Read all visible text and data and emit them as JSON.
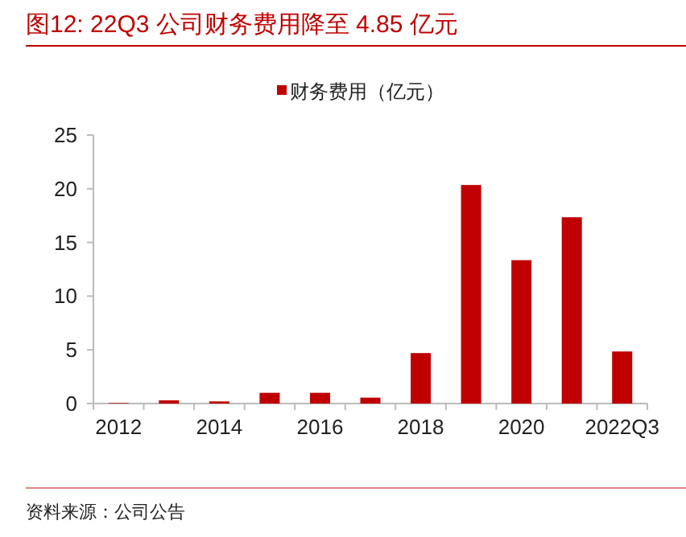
{
  "chart_data": {
    "type": "bar",
    "title": "图12:   22Q3 公司财务费用降至 4.85 亿元",
    "categories": [
      "2012",
      null,
      "2014",
      null,
      "2016",
      null,
      "2018",
      null,
      "2020",
      null,
      "2022Q3"
    ],
    "series": [
      {
        "name": "财务费用（亿元）",
        "color": "#c00000",
        "values": [
          0.05,
          0.3,
          0.2,
          1.0,
          1.0,
          0.55,
          4.7,
          20.35,
          13.35,
          17.35,
          4.85
        ]
      }
    ],
    "ylim": [
      0,
      25
    ],
    "yticks": [
      0,
      5,
      10,
      15,
      20,
      25
    ],
    "legend": "top",
    "grid": false,
    "annotations": [
      "资料来源：公司公告"
    ]
  }
}
